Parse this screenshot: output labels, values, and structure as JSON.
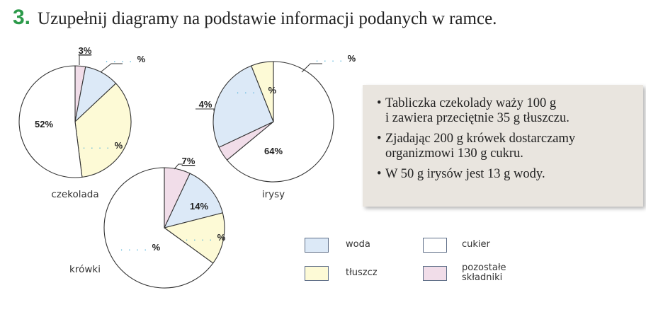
{
  "header": {
    "number": "3.",
    "instruction": "Uzupełnij diagramy na podstawie informacji podanych w ramce."
  },
  "colors": {
    "woda": "#dce9f7",
    "tluszcz": "#fdfad6",
    "cukier": "#ffffff",
    "pozostale": "#f1dde9",
    "accent": "#2c9a4a",
    "outline": "#333333",
    "dots": "#4fb0d8"
  },
  "info": {
    "bullet": "•",
    "items": [
      {
        "line1": "Tabliczka czekolady waży 100 g",
        "line2": "i zawiera przeciętnie 35 g tłuszczu."
      },
      {
        "line1": "Zjadając 200 g krówek dostarczamy",
        "line2": "organizmowi 130 g cukru."
      },
      {
        "line1": "W 50 g irysów jest 13 g wody.",
        "line2": ""
      }
    ]
  },
  "chart_data": [
    {
      "type": "pie",
      "name": "czekolada",
      "slices": [
        {
          "category": "pozostale",
          "value": 3,
          "label": "3%"
        },
        {
          "category": "woda",
          "value": 10,
          "label": ". . . . %"
        },
        {
          "category": "tluszcz",
          "value": 35,
          "label": ". . . . %"
        },
        {
          "category": "cukier",
          "value": 52,
          "label": "52%"
        }
      ]
    },
    {
      "type": "pie",
      "name": "irysy",
      "slices": [
        {
          "category": "cukier",
          "value": 64,
          "label": "64%"
        },
        {
          "category": "pozostale",
          "value": 4,
          "label": "4%"
        },
        {
          "category": "woda",
          "value": 26,
          "label": ". . . . %"
        },
        {
          "category": "tluszcz",
          "value": 6,
          "label": ". . . . %"
        }
      ]
    },
    {
      "type": "pie",
      "name": "krówki",
      "slices": [
        {
          "category": "pozostale",
          "value": 7,
          "label": "7%"
        },
        {
          "category": "woda",
          "value": 14,
          "label": "14%"
        },
        {
          "category": "tluszcz",
          "value": 14,
          "label": ". . . . %"
        },
        {
          "category": "cukier",
          "value": 65,
          "label": ". . . . %"
        }
      ]
    }
  ],
  "legend": [
    {
      "category": "woda",
      "label": "woda"
    },
    {
      "category": "cukier",
      "label": "cukier"
    },
    {
      "category": "tluszcz",
      "label": "tłuszcz"
    },
    {
      "category": "pozostale",
      "label": "pozostałe",
      "label2": "składniki"
    }
  ]
}
